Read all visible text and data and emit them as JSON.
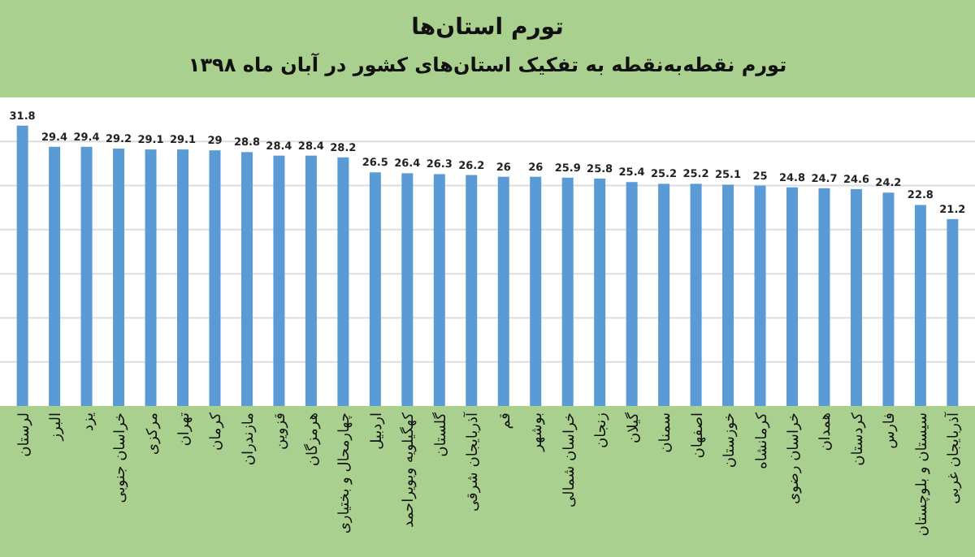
{
  "chart_data": {
    "type": "bar",
    "title": "تورم استان‌ها",
    "subtitle": "تورم نقطه‌به‌نقطه به تفکیک استان‌های کشور در آبان ماه ۱۳۹۸",
    "categories": [
      "لرستان",
      "البرز",
      "یزد",
      "خراسان جنوبی",
      "مرکزی",
      "تهران",
      "کرمان",
      "مازندران",
      "قزوین",
      "هرمزگان",
      "چهارمحال و بختیاری",
      "اردبیل",
      "کهگیلویه وبویراحمد",
      "گلستان",
      "آذربایجان شرقی",
      "قم",
      "بوشهر",
      "خراسان شمالی",
      "زنجان",
      "گیلان",
      "سمنان",
      "اصفهان",
      "خوزستان",
      "کرمانشاه",
      "خراسان رضوی",
      "همدان",
      "کردستان",
      "فارس",
      "سیستان و بلوچستان",
      "آذربایجان غربی"
    ],
    "values": [
      31.8,
      29.4,
      29.4,
      29.2,
      29.1,
      29.1,
      29,
      28.8,
      28.4,
      28.4,
      28.2,
      26.5,
      26.4,
      26.3,
      26.2,
      26,
      26,
      25.9,
      25.8,
      25.4,
      25.2,
      25.2,
      25.1,
      25,
      24.8,
      24.7,
      24.6,
      24.2,
      22.8,
      21.2
    ],
    "color": "#5b9bd5",
    "data_labels": true,
    "grid": "y",
    "ylim": [
      0,
      35
    ],
    "yticks": [
      {
        "value": 5,
        "label": null
      },
      {
        "value": 10,
        "label": null
      },
      {
        "value": 15,
        "label": null
      },
      {
        "value": 20,
        "label": null
      },
      {
        "value": 25,
        "label": null
      },
      {
        "value": 30,
        "label": null
      }
    ],
    "tick_labels": "x"
  }
}
